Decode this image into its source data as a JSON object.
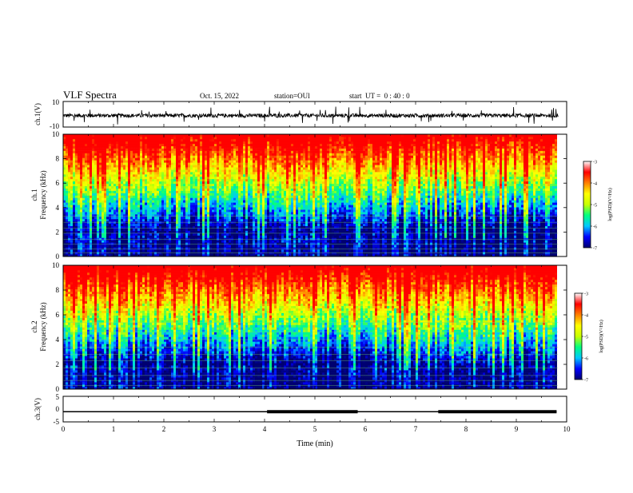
{
  "header": {
    "title": "VLF Spectra",
    "date": "Oct. 15, 2022",
    "station": "station=OUl",
    "start": "start  UT =  0 : 40 : 0"
  },
  "chart_data": [
    {
      "type": "line",
      "ylabel": "ch.1(V)",
      "ylim": [
        -10,
        10
      ],
      "yticks": [
        "10",
        "-10"
      ],
      "xlim": [
        0,
        10
      ],
      "baseline": -1,
      "noise_amplitude": 1.5
    },
    {
      "type": "heatmap",
      "ylabel_line1": "ch.1",
      "ylabel_line2": "Frequency (kHz)",
      "ylim": [
        0,
        10
      ],
      "yticks": [
        "0",
        "2",
        "4",
        "6",
        "8",
        "10"
      ],
      "xlim": [
        0,
        10
      ],
      "colorbar": {
        "label": "log(PSD)(V²/Hz)",
        "range": [
          -7,
          -3
        ],
        "ticks": [
          "-3",
          "-4",
          "-5",
          "-6",
          "-7"
        ],
        "colors": [
          "#000070",
          "#0000ff",
          "#00c8ff",
          "#00ff80",
          "#c8ff00",
          "#ffff00",
          "#ff8000",
          "#ff0000",
          "#ffffff"
        ]
      }
    },
    {
      "type": "heatmap",
      "ylabel_line1": "ch.2",
      "ylabel_line2": "Frequency (kHz)",
      "ylim": [
        0,
        10
      ],
      "yticks": [
        "0",
        "2",
        "4",
        "6",
        "8",
        "10"
      ],
      "xlim": [
        0,
        10
      ],
      "colorbar": {
        "label": "log(PSD)(V²/Hz)",
        "range": [
          -7,
          -3
        ],
        "ticks": [
          "-3",
          "-4",
          "-5",
          "-6",
          "-7"
        ],
        "colors": [
          "#000070",
          "#0000ff",
          "#00c8ff",
          "#00ff80",
          "#c8ff00",
          "#ffff00",
          "#ff8000",
          "#ff0000",
          "#ffffff"
        ]
      }
    },
    {
      "type": "line",
      "ylabel": "ch.3(V)",
      "ylim": [
        -5,
        5
      ],
      "yticks": [
        "5",
        "0",
        "-5"
      ],
      "xlim": [
        0,
        10
      ],
      "xlabel": "Time (min)",
      "xticks": [
        "0",
        "1",
        "2",
        "3",
        "4",
        "5",
        "6",
        "7",
        "8",
        "9",
        "10"
      ],
      "baseline": -1,
      "thick_segments": [
        [
          4.05,
          5.85
        ],
        [
          7.45,
          9.8
        ]
      ],
      "data_end": 9.8
    }
  ]
}
